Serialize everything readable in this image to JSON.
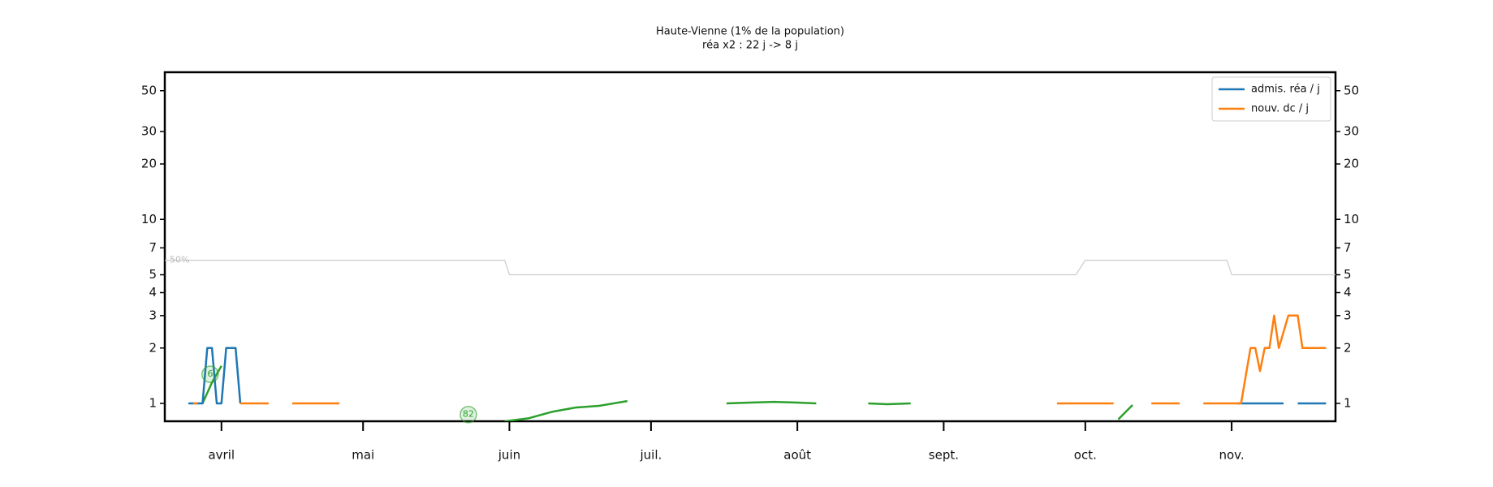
{
  "chart_data": {
    "type": "line",
    "title": "Haute-Vienne (1% de la population)",
    "subtitle": "réa x2 : 22 j -> 8 j",
    "log_scale": true,
    "legend": "upper right",
    "ylim": [
      0.8,
      63
    ],
    "yticks": [
      1,
      2,
      3,
      4,
      5,
      7,
      10,
      20,
      30,
      50
    ],
    "xlim": [
      -12,
      236
    ],
    "xticks": [
      {
        "value": 0,
        "label": "avril"
      },
      {
        "value": 30,
        "label": "mai"
      },
      {
        "value": 61,
        "label": "juin"
      },
      {
        "value": 91,
        "label": "juil."
      },
      {
        "value": 122,
        "label": "août"
      },
      {
        "value": 153,
        "label": "sept."
      },
      {
        "value": 183,
        "label": "oct."
      },
      {
        "value": 214,
        "label": "nov."
      }
    ],
    "series": [
      {
        "name": "admis. réa / j",
        "color": "#1f77b4",
        "x": [
          -7,
          -5,
          -4,
          -3,
          -2,
          -1,
          0,
          1,
          2,
          3,
          4,
          100,
          215,
          217,
          219,
          221,
          223,
          225,
          227,
          228,
          230,
          232,
          234
        ],
        "values": [
          1,
          1,
          1,
          2,
          2,
          1,
          1,
          2,
          2,
          2,
          1,
          null,
          1,
          1,
          1,
          1,
          1,
          1,
          null,
          1,
          1,
          1,
          1
        ]
      },
      {
        "name": "nouv. dc / j",
        "color": "#ff7f0e",
        "x": [
          -6,
          -5,
          -4,
          4,
          7,
          10,
          12,
          15,
          20,
          25,
          100,
          177,
          183,
          189,
          193,
          197,
          203,
          205,
          208,
          212,
          216,
          218,
          219,
          220,
          221,
          222,
          223,
          224,
          226,
          228,
          229,
          234
        ],
        "values": [
          1,
          1,
          null,
          1,
          1,
          1,
          null,
          1,
          1,
          1,
          null,
          1,
          1,
          1,
          null,
          1,
          1,
          null,
          1,
          1,
          1,
          2,
          2,
          1.5,
          2,
          2,
          3,
          2,
          3,
          3,
          2,
          2
        ]
      }
    ],
    "trend": {
      "color": "#2ca02c",
      "x": [
        -4,
        -2,
        0,
        1,
        60,
        65,
        70,
        75,
        80,
        86,
        95,
        107,
        112,
        117,
        122,
        126,
        130,
        137,
        141,
        146,
        160,
        190,
        193
      ],
      "values": [
        1,
        1.3,
        1.6,
        null,
        0.8,
        0.83,
        0.9,
        0.95,
        0.97,
        1.03,
        null,
        1.0,
        1.01,
        1.02,
        1.01,
        1.0,
        null,
        1.0,
        0.99,
        1.0,
        null,
        0.82,
        0.98
      ]
    },
    "reference_line": {
      "label": "50%",
      "color": "#cccccc",
      "x": [
        -12,
        60,
        61,
        181,
        183,
        213,
        214,
        236
      ],
      "values": [
        6,
        6,
        5,
        5,
        6,
        6,
        5,
        5
      ]
    },
    "annotations": [
      {
        "text": "6",
        "x": -2.4,
        "y": 1.44
      },
      {
        "text": "82",
        "x": 52.3,
        "y": 0.87
      }
    ]
  }
}
